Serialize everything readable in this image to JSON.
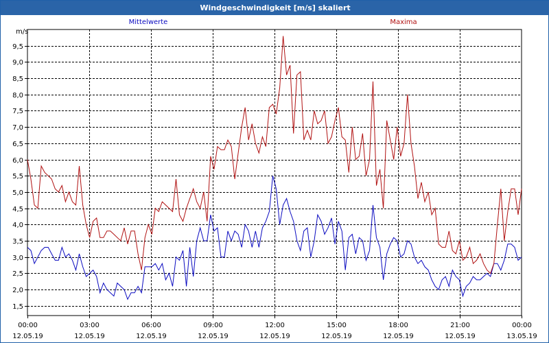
{
  "window": {
    "title": "Windgeschwindigkeit [m/s] skaliert"
  },
  "colors": {
    "titlebar": "#2a64a8",
    "series_mittel": "#0a0ac0",
    "series_max": "#b01010",
    "grid": "#000000"
  },
  "chart_data": {
    "type": "line",
    "title": "Windgeschwindigkeit [m/s] skaliert",
    "ylabel": "m/s",
    "xlabel": "",
    "ylim": [
      1.2,
      10.0
    ],
    "xlim_hours": [
      0,
      24
    ],
    "y_ticks": [
      "1,5",
      "2,0",
      "2,5",
      "3,0",
      "3,5",
      "4,0",
      "4,5",
      "5,0",
      "5,5",
      "6,0",
      "6,5",
      "7,0",
      "7,5",
      "8,0",
      "8,5",
      "9,0",
      "9,5"
    ],
    "x_ticks": [
      {
        "time": "00:00",
        "date": "12.05.19"
      },
      {
        "time": "03:00",
        "date": "12.05.19"
      },
      {
        "time": "06:00",
        "date": "12.05.19"
      },
      {
        "time": "09:00",
        "date": "12.05.19"
      },
      {
        "time": "12:00",
        "date": "12.05.19"
      },
      {
        "time": "15:00",
        "date": "12.05.19"
      },
      {
        "time": "18:00",
        "date": "12.05.19"
      },
      {
        "time": "21:00",
        "date": "12.05.19"
      },
      {
        "time": "00:00",
        "date": "13.05.19"
      }
    ],
    "grid": true,
    "legend": "top",
    "series": [
      {
        "name": "Mittelwerte",
        "values": [
          3.3,
          3.2,
          2.8,
          3.0,
          3.2,
          3.3,
          3.3,
          3.1,
          2.9,
          2.9,
          3.3,
          3.0,
          3.1,
          2.9,
          2.6,
          3.1,
          2.7,
          2.4,
          2.5,
          2.6,
          2.4,
          1.9,
          2.2,
          2.0,
          1.9,
          1.8,
          2.2,
          2.1,
          2.0,
          1.7,
          1.9,
          1.9,
          2.1,
          1.9,
          2.7,
          2.7,
          2.7,
          2.8,
          2.6,
          2.8,
          2.3,
          2.5,
          2.1,
          3.0,
          2.9,
          3.2,
          2.1,
          3.3,
          2.4,
          3.5,
          3.9,
          3.5,
          3.5,
          4.3,
          3.8,
          3.9,
          3.0,
          3.0,
          3.8,
          3.5,
          3.8,
          3.7,
          3.3,
          4.0,
          3.8,
          3.3,
          3.8,
          3.3,
          3.9,
          4.1,
          4.4,
          5.5,
          5.1,
          4.0,
          4.6,
          4.8,
          4.4,
          4.1,
          3.5,
          3.2,
          3.8,
          3.9,
          3.0,
          3.5,
          4.3,
          4.1,
          3.7,
          3.9,
          4.2,
          3.4,
          4.1,
          3.8,
          2.6,
          3.6,
          3.7,
          3.1,
          3.6,
          3.5,
          2.9,
          3.2,
          4.6,
          3.6,
          3.3,
          2.3,
          3.1,
          3.4,
          3.6,
          3.5,
          3.0,
          3.1,
          3.5,
          3.4,
          3.0,
          2.8,
          2.9,
          2.7,
          2.6,
          2.3,
          2.1,
          2.0,
          2.3,
          2.4,
          2.1,
          2.6,
          2.4,
          2.3,
          1.8,
          2.1,
          2.2,
          2.4,
          2.3,
          2.3,
          2.4,
          2.5,
          2.4,
          2.8,
          2.8,
          2.6,
          2.9,
          3.4,
          3.4,
          3.3,
          2.9,
          3.0
        ]
      },
      {
        "name": "Maxima",
        "values": [
          6.0,
          5.4,
          4.6,
          4.5,
          5.8,
          5.6,
          5.5,
          5.4,
          5.1,
          5.0,
          5.2,
          4.7,
          5.0,
          4.7,
          4.6,
          5.8,
          4.6,
          4.0,
          3.6,
          4.1,
          4.2,
          3.6,
          3.6,
          3.8,
          3.8,
          3.7,
          3.6,
          3.5,
          3.9,
          3.4,
          3.8,
          3.8,
          3.1,
          2.6,
          3.6,
          4.0,
          3.7,
          4.5,
          4.4,
          4.7,
          4.6,
          4.5,
          4.4,
          5.4,
          4.3,
          4.1,
          4.5,
          4.8,
          5.1,
          4.7,
          4.5,
          5.0,
          4.1,
          6.1,
          5.7,
          6.4,
          6.3,
          6.3,
          6.6,
          6.4,
          5.4,
          6.2,
          7.0,
          7.6,
          6.6,
          7.1,
          6.5,
          6.2,
          6.7,
          6.4,
          7.6,
          7.7,
          7.4,
          8.2,
          9.8,
          8.6,
          8.9,
          6.8,
          8.6,
          8.7,
          6.6,
          6.9,
          6.6,
          7.5,
          7.1,
          7.2,
          7.5,
          6.5,
          6.7,
          7.2,
          7.6,
          6.7,
          6.6,
          5.6,
          7.0,
          6.0,
          6.1,
          6.8,
          5.5,
          6.0,
          8.4,
          5.2,
          5.7,
          4.5,
          7.2,
          6.6,
          6.0,
          7.0,
          6.1,
          6.5,
          8.0,
          6.5,
          5.8,
          4.8,
          5.3,
          4.7,
          5.0,
          4.3,
          4.5,
          3.4,
          3.3,
          3.3,
          3.8,
          3.2,
          3.1,
          3.5,
          2.9,
          3.0,
          3.3,
          2.8,
          2.9,
          3.1,
          2.8,
          2.6,
          2.5,
          2.8,
          4.0,
          5.1,
          3.5,
          4.4,
          5.1,
          5.1,
          4.3,
          5.1
        ]
      }
    ]
  }
}
